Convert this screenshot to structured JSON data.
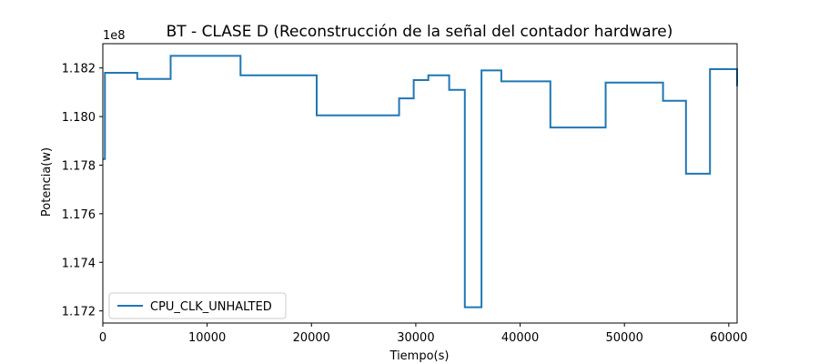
{
  "chart_data": {
    "type": "line",
    "step": true,
    "title": "BT - CLASE D (Reconstrucción de la señal del contador hardware)",
    "xlabel": "Tiempo(s)",
    "ylabel": "Potencia(w)",
    "y_offset_text": "1e8",
    "xlim": [
      0,
      60800
    ],
    "ylim": [
      1.1715,
      1.183
    ],
    "x_ticks": [
      0,
      10000,
      20000,
      30000,
      40000,
      50000,
      60000
    ],
    "x_tick_labels": [
      "0",
      "10000",
      "20000",
      "30000",
      "40000",
      "50000",
      "60000"
    ],
    "y_ticks": [
      1.172,
      1.174,
      1.176,
      1.178,
      1.18,
      1.182
    ],
    "y_tick_labels": [
      "1.172",
      "1.174",
      "1.176",
      "1.178",
      "1.180",
      "1.182"
    ],
    "legend_position": "lower-left",
    "series": [
      {
        "name": "CPU_CLK_UNHALTED",
        "color": "#1f77b4",
        "x": [
          0,
          200,
          3300,
          6500,
          13200,
          20500,
          28400,
          29800,
          31200,
          33200,
          34700,
          36300,
          38200,
          42900,
          48200,
          53700,
          55900,
          58200,
          60800
        ],
        "y": [
          1.17825,
          1.1818,
          1.18155,
          1.1825,
          1.1817,
          1.18005,
          1.18075,
          1.1815,
          1.1817,
          1.1811,
          1.17215,
          1.1819,
          1.18145,
          1.17955,
          1.1814,
          1.18065,
          1.17765,
          1.18195,
          1.18125
        ]
      }
    ]
  }
}
